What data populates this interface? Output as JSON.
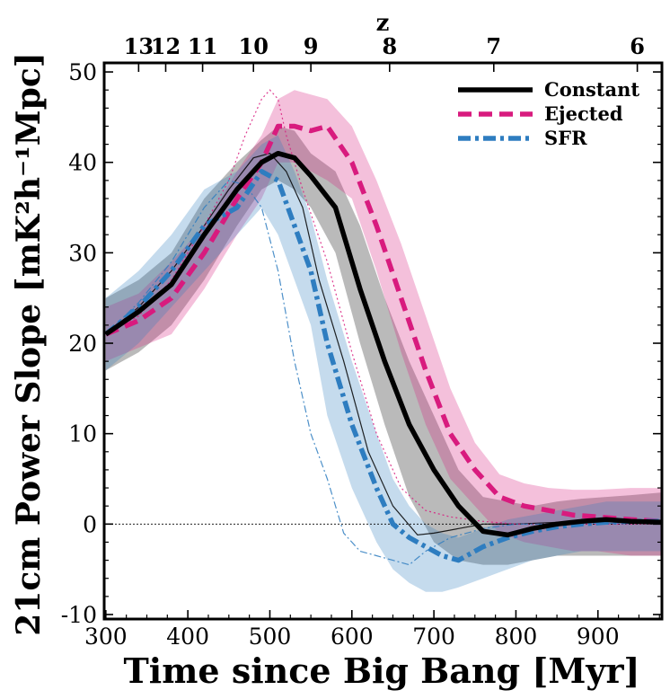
{
  "chart_data": {
    "type": "line",
    "title": "",
    "xlabel": "Time since Big Bang [Myr]",
    "ylabel": "21cm Power Slope [mK²h⁻¹Mpc]",
    "top_axis_label": "z",
    "xlim": [
      298,
      978
    ],
    "ylim": [
      -10.5,
      51
    ],
    "x_ticks": [
      300,
      400,
      500,
      600,
      700,
      800,
      900
    ],
    "y_ticks": [
      -10,
      0,
      10,
      20,
      30,
      40,
      50
    ],
    "top_ticks": [
      {
        "z": "13",
        "t": 340
      },
      {
        "z": "12",
        "t": 373
      },
      {
        "z": "11",
        "t": 418
      },
      {
        "z": "10",
        "t": 480
      },
      {
        "z": "9",
        "t": 550
      },
      {
        "z": "8",
        "t": 646
      },
      {
        "z": "7",
        "t": 773
      },
      {
        "z": "6",
        "t": 948
      }
    ],
    "legend_position": "top-right",
    "reference_line": 0,
    "series": [
      {
        "name": "Constant",
        "color": "#000000",
        "dash": "solid",
        "x": [
          300,
          340,
          380,
          420,
          460,
          490,
          510,
          530,
          550,
          580,
          610,
          640,
          670,
          700,
          730,
          760,
          790,
          820,
          850,
          880,
          910,
          940,
          978
        ],
        "y": [
          21,
          23.5,
          26.5,
          32,
          37,
          40,
          41,
          40.5,
          38.5,
          35,
          26,
          18,
          11,
          6,
          2,
          -0.8,
          -1.2,
          -0.5,
          0,
          0.3,
          0.5,
          0.3,
          0.2
        ],
        "band_upper": [
          25,
          27,
          30,
          36,
          40,
          42.5,
          44,
          43.5,
          41,
          39,
          33,
          25,
          18,
          12,
          6,
          3,
          2.5,
          2,
          2.5,
          2.8,
          3,
          3.2,
          3.5
        ],
        "band_lower": [
          17,
          19,
          22,
          27,
          33,
          37,
          38,
          37,
          35,
          30,
          20,
          11,
          3,
          -2,
          -4,
          -4.5,
          -4.5,
          -4,
          -3.5,
          -3.5,
          -3.5,
          -3.5,
          -3.5
        ]
      },
      {
        "name": "Ejected",
        "color": "#d81b7e",
        "dash": "dashed",
        "x": [
          300,
          340,
          380,
          420,
          460,
          490,
          510,
          530,
          550,
          570,
          600,
          630,
          660,
          690,
          720,
          750,
          780,
          810,
          840,
          870,
          900,
          940,
          978
        ],
        "y": [
          21,
          22.5,
          25,
          30,
          36,
          40,
          44,
          44,
          43.5,
          44,
          40,
          33,
          25,
          17,
          10,
          6,
          3,
          2,
          1.5,
          1,
          0.8,
          0.5,
          0.3
        ],
        "band_upper": [
          24,
          25.5,
          29,
          33,
          39,
          43,
          47,
          48,
          47.5,
          47,
          44,
          38,
          31,
          23,
          15,
          9,
          5.5,
          4.5,
          4,
          3.8,
          3.8,
          4,
          4
        ],
        "band_lower": [
          18,
          19.5,
          21,
          26,
          32,
          36,
          40,
          40,
          39,
          38,
          36,
          28,
          19,
          11,
          5,
          2,
          -1,
          -2,
          -2.5,
          -3,
          -3,
          -3.5,
          -3.5
        ]
      },
      {
        "name": "SFR",
        "color": "#2e7dc0",
        "dash": "dashdot",
        "x": [
          300,
          340,
          380,
          420,
          440,
          460,
          490,
          510,
          530,
          550,
          570,
          600,
          630,
          650,
          670,
          690,
          710,
          730,
          760,
          790,
          820,
          850,
          880,
          910,
          940,
          978
        ],
        "y": [
          21,
          24,
          28,
          33,
          34,
          35,
          39,
          38,
          33,
          28,
          20,
          11,
          4,
          0,
          -1.5,
          -2.5,
          -3.5,
          -4,
          -2.5,
          -1.5,
          -0.8,
          -0.3,
          0,
          0.2,
          0.3,
          0.3
        ],
        "band_upper": [
          25,
          28,
          32,
          37,
          38,
          39,
          42,
          43,
          39,
          34,
          27,
          18,
          10,
          5,
          2,
          0,
          -1,
          -1.5,
          -0.5,
          0.5,
          1,
          1.5,
          2,
          2.5,
          2.5,
          2.5
        ],
        "band_lower": [
          17,
          20,
          24,
          28,
          30,
          32,
          35,
          32,
          27,
          22,
          12,
          4,
          -2,
          -5,
          -6.5,
          -7.5,
          -7.5,
          -7,
          -6,
          -5,
          -4,
          -3.5,
          -3,
          -3,
          -3,
          -3
        ]
      }
    ],
    "thin_lines": [
      {
        "name": "Constant-thin",
        "color": "#000000",
        "dash": "solid",
        "x": [
          300,
          340,
          380,
          420,
          450,
          480,
          500,
          520,
          540,
          560,
          590,
          620,
          650,
          680,
          700,
          730,
          760,
          800,
          850,
          900,
          978
        ],
        "y": [
          21,
          24,
          28,
          33,
          37,
          40.5,
          41,
          39,
          35,
          27,
          18,
          8,
          2,
          -1.2,
          -1,
          -0.5,
          0,
          0,
          0.2,
          0.3,
          0.3
        ]
      },
      {
        "name": "Ejected-thin",
        "color": "#d81b7e",
        "dash": "dotted",
        "x": [
          300,
          340,
          380,
          420,
          450,
          470,
          490,
          500,
          510,
          520,
          540,
          570,
          600,
          630,
          660,
          690,
          720,
          760,
          800,
          850,
          900,
          978
        ],
        "y": [
          21,
          23,
          27,
          33,
          38,
          43,
          47,
          48,
          47,
          43,
          37,
          29,
          19,
          10,
          4,
          1.5,
          0.8,
          0.3,
          0,
          0,
          0,
          0
        ]
      },
      {
        "name": "SFR-thin",
        "color": "#2e7dc0",
        "dash": "dashdot",
        "x": [
          300,
          340,
          380,
          420,
          450,
          470,
          490,
          510,
          530,
          550,
          570,
          590,
          610,
          630,
          650,
          670,
          690,
          720,
          760,
          800,
          850,
          900,
          978
        ],
        "y": [
          21,
          24.5,
          29,
          35,
          38,
          37.5,
          35,
          28,
          18,
          10,
          5,
          -1,
          -3,
          -3.5,
          -4,
          -4.5,
          -3,
          -1.5,
          -0.5,
          0,
          0,
          0.1,
          0.1
        ]
      }
    ]
  }
}
